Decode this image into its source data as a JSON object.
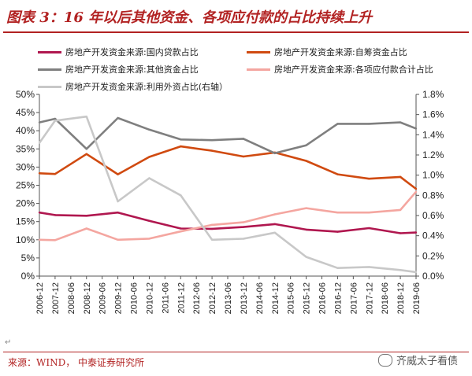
{
  "title": "图表 3：16 年以后其他资金、各项应付款的占比持续上升",
  "source": "来源：WIND， 中泰证券研究所",
  "watermark": "齐威太子看债",
  "chart_data": {
    "type": "line",
    "categories": [
      "2006-12",
      "2007-12",
      "2008-06",
      "2008-12",
      "2009-06",
      "2009-12",
      "2010-06",
      "2010-12",
      "2011-06",
      "2011-12",
      "2012-06",
      "2012-12",
      "2013-06",
      "2013-12",
      "2014-06",
      "2014-12",
      "2015-06",
      "2015-12",
      "2016-06",
      "2016-12",
      "2017-06",
      "2017-12",
      "2018-06",
      "2018-12",
      "2019-06"
    ],
    "x": [
      "2006-12",
      "2007-12",
      "2008-12",
      "2009-12",
      "2010-12",
      "2011-12",
      "2012-12",
      "2013-12",
      "2014-12",
      "2015-12",
      "2016-12",
      "2017-12",
      "2018-12",
      "2019-06"
    ],
    "left_axis": {
      "ylim": [
        0,
        50
      ],
      "ticks": [
        "0%",
        "5%",
        "10%",
        "15%",
        "20%",
        "25%",
        "30%",
        "35%",
        "40%",
        "45%",
        "50%"
      ]
    },
    "right_axis": {
      "ylim": [
        0,
        1.8
      ],
      "ticks": [
        "0.0%",
        "0.2%",
        "0.4%",
        "0.6%",
        "0.8%",
        "1.0%",
        "1.2%",
        "1.4%",
        "1.6%",
        "1.8%"
      ]
    },
    "series": [
      {
        "name": "房地产开发资金来源:国内贷款占比",
        "axis": "left",
        "color": "#b0174f",
        "values": [
          17.5,
          16.8,
          16.6,
          17.5,
          15.2,
          13.1,
          13.0,
          13.5,
          14.3,
          12.8,
          12.2,
          13.2,
          11.8,
          12.0
        ]
      },
      {
        "name": "房地产开发资金来源:自筹资金占比",
        "axis": "left",
        "color": "#d04a10",
        "values": [
          28.3,
          28.1,
          33.6,
          28.0,
          32.8,
          35.7,
          34.5,
          32.9,
          34.0,
          31.7,
          28.0,
          26.8,
          27.3,
          24.0
        ]
      },
      {
        "name": "房地产开发资金来源:其他资金占比",
        "axis": "left",
        "color": "#7f7f7f",
        "values": [
          42.3,
          43.3,
          35.0,
          43.5,
          40.3,
          37.6,
          37.4,
          37.8,
          33.8,
          36.0,
          41.9,
          41.9,
          42.3,
          40.6
        ]
      },
      {
        "name": "房地产开发资金来源:各项应付款合计占比",
        "axis": "left",
        "color": "#f4a6a0",
        "values": [
          10.0,
          9.9,
          13.1,
          10.0,
          10.3,
          12.3,
          14.1,
          14.8,
          17.0,
          18.7,
          17.5,
          17.5,
          18.2,
          23.2
        ]
      },
      {
        "name": "房地产开发资金来源:利用外资占比(右轴）",
        "axis": "right",
        "color": "#c8c8c8",
        "values": [
          1.32,
          1.54,
          1.58,
          0.74,
          0.97,
          0.8,
          0.36,
          0.37,
          0.43,
          0.19,
          0.08,
          0.09,
          0.06,
          0.04
        ]
      }
    ]
  }
}
